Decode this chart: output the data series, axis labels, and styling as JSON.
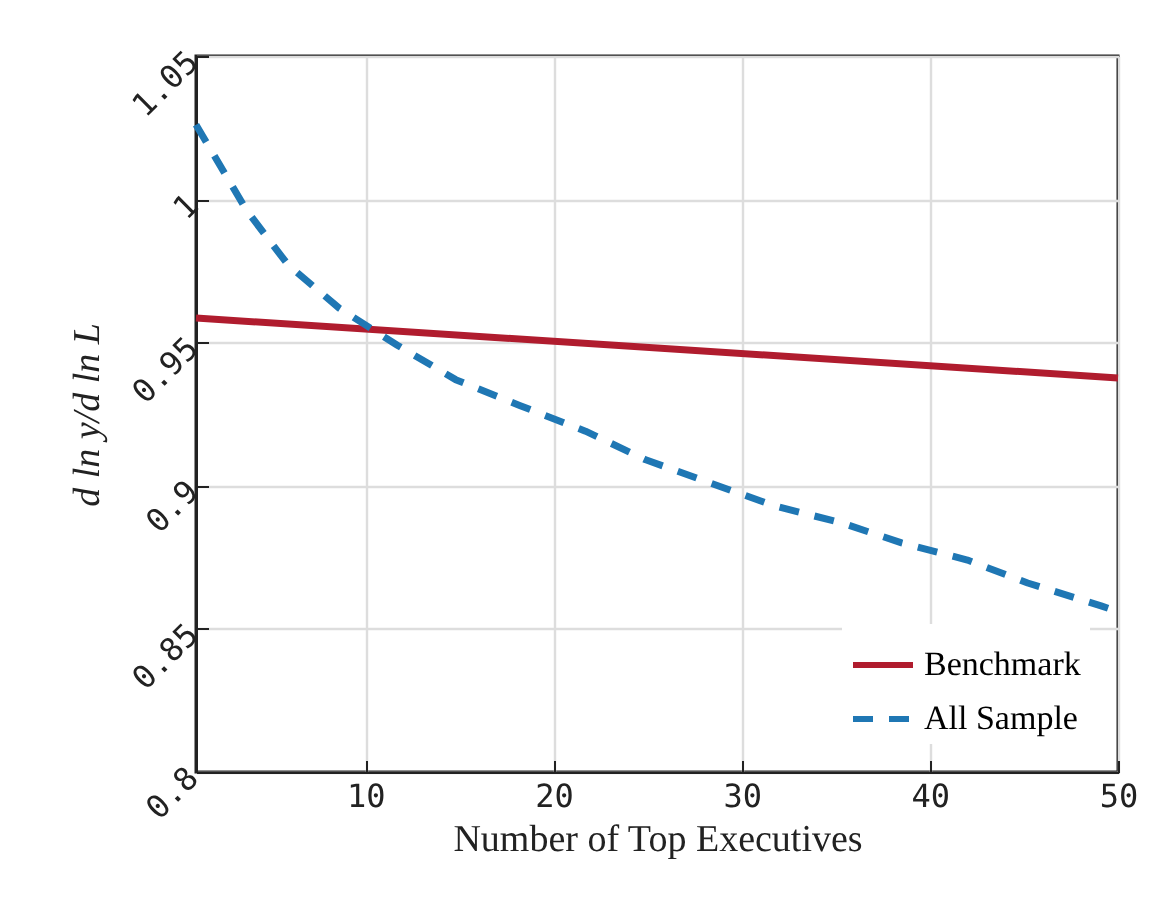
{
  "chart_data": {
    "type": "line",
    "xlabel": "Number of Top Executives",
    "ylabel": "d ln y/d ln L",
    "xlim": [
      1,
      50
    ],
    "xticks": [
      10,
      20,
      30,
      40,
      50
    ],
    "ylim": [
      0.8,
      1.05
    ],
    "yticks": [
      0.8,
      0.85,
      0.9,
      0.95,
      1,
      1.05
    ],
    "grid": true,
    "legend": "bottom right",
    "marker": "none",
    "series": [
      {
        "name": "Benchmark",
        "color": "#b01c2e",
        "line_style": "solid",
        "x": [
          1,
          50
        ],
        "values": [
          0.9585,
          0.9376
        ]
      },
      {
        "name": "All Sample",
        "color": "#1f77b4",
        "line_style": "dashed",
        "x": [
          1,
          3.7,
          5.9,
          8.6,
          11.7,
          14.8,
          18.2,
          21.7,
          24.9,
          28.3,
          31.7,
          35.3,
          38.5,
          42,
          45.2,
          49.1,
          50
        ],
        "values": [
          1.026,
          0.996,
          0.977,
          0.962,
          0.949,
          0.937,
          0.928,
          0.919,
          0.909,
          0.901,
          0.893,
          0.887,
          0.88,
          0.874,
          0.866,
          0.858,
          0.856
        ]
      }
    ]
  }
}
